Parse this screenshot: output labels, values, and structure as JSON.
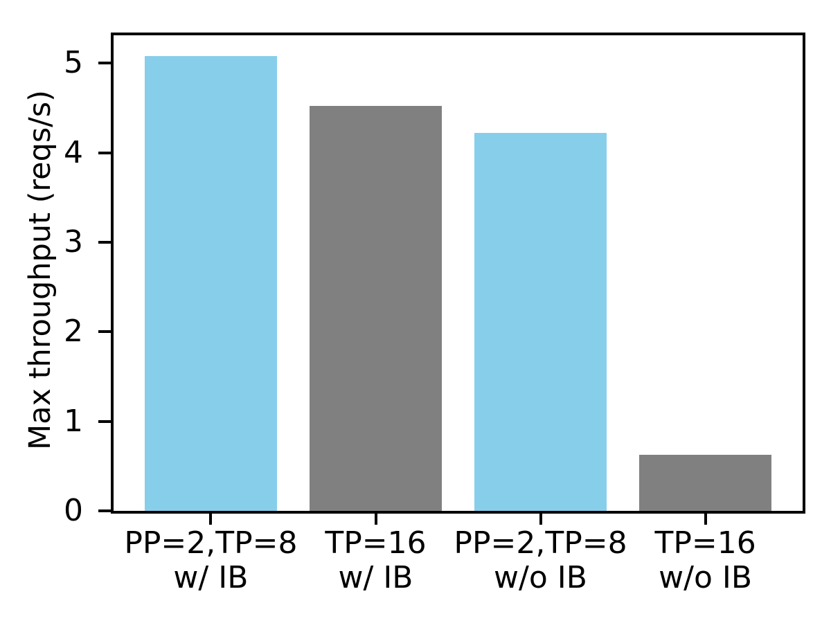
{
  "chart_data": {
    "type": "bar",
    "categories": [
      "PP=2,TP=8\nw/ IB",
      "TP=16\nw/ IB",
      "PP=2,TP=8\nw/o IB",
      "TP=16\nw/o IB"
    ],
    "category_names": [
      "pp2-tp8-with-ib",
      "tp16-with-ib",
      "pp2-tp8-without-ib",
      "tp16-without-ib"
    ],
    "values": [
      5.08,
      4.52,
      4.22,
      0.63
    ],
    "bar_colors": [
      "#87CEEB",
      "#808080",
      "#87CEEB",
      "#808080"
    ],
    "title": "",
    "xlabel": "",
    "ylabel": "Max throughput (reqs/s)",
    "yticks": [
      0,
      1,
      2,
      3,
      4,
      5
    ],
    "ylim": [
      0,
      5.31
    ],
    "xlim": [
      -0.59,
      3.59
    ],
    "bar_width": 0.8,
    "grid": false,
    "legend": null,
    "spine_color": "#000000",
    "text_color": "#000000",
    "background_color": "#ffffff"
  }
}
